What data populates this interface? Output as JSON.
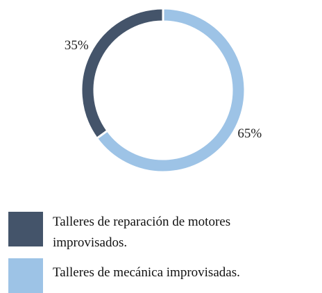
{
  "chart_data": {
    "type": "pie",
    "donut": true,
    "categories": [
      "Talleres de reparación de motores improvisados.",
      "Talleres de mecánica improvisadas."
    ],
    "values": [
      35,
      65
    ],
    "value_labels": [
      "35%",
      "65%"
    ],
    "colors": [
      "#44546a",
      "#9dc3e6"
    ]
  }
}
